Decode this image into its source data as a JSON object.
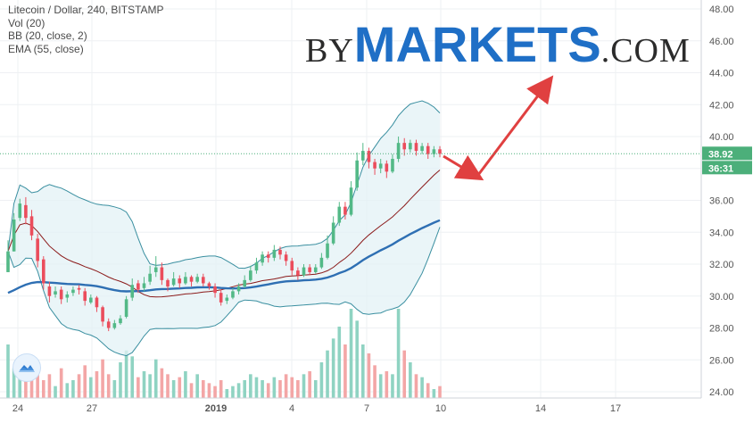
{
  "legend": {
    "title": "Litecoin / Dollar, 240, BITSTAMP",
    "vol": "Vol (20)",
    "bb": "BB (20, close, 2)",
    "ema": "EMA (55, close)"
  },
  "brand": {
    "by": "BY",
    "markets": "MARKETS",
    "com": ".COM"
  },
  "price_axis": {
    "ticks": [
      "48.00",
      "46.00",
      "44.00",
      "42.00",
      "40.00",
      "38.00",
      "36.00",
      "34.00",
      "32.00",
      "30.00",
      "28.00",
      "26.00",
      "24.00"
    ]
  },
  "time_axis": {
    "ticks": [
      "24",
      "27",
      "2019",
      "4",
      "7",
      "10",
      "14",
      "17"
    ]
  },
  "last_price": {
    "value": "38.92",
    "countdown": "36:31"
  },
  "colors": {
    "up": "#53b987",
    "down": "#eb4d5c",
    "vol_up": "#8fd3c2",
    "vol_down": "#f3a6a6",
    "bb_band": "#3a8fa0",
    "bb_basis": "#8b1a1a",
    "ema": "#2e6fb3",
    "arrow": "#e04040",
    "last_price": "#4caf7a",
    "brand": "#1f6fc6"
  },
  "icons": {
    "tv_logo": "tradingview-cloud-icon"
  },
  "chart_data": {
    "type": "candlestick",
    "title": "Litecoin / Dollar, 240, BITSTAMP",
    "ylim": [
      24,
      48
    ],
    "y_ticks": [
      48,
      46,
      44,
      42,
      40,
      38,
      36,
      34,
      32,
      30,
      28,
      26,
      24
    ],
    "x_tick_labels": [
      "24",
      "27",
      "2019",
      "4",
      "7",
      "10",
      "14",
      "17"
    ],
    "candles": [
      [
        31.5,
        32.8,
        31.5,
        33.5
      ],
      [
        32.8,
        34.8,
        32.8,
        35.2
      ],
      [
        34.9,
        35.8,
        34.7,
        36.1
      ],
      [
        35.7,
        34.9,
        34.5,
        36.2
      ],
      [
        35.0,
        33.8,
        33.5,
        35.4
      ],
      [
        33.6,
        32.2,
        31.8,
        33.9
      ],
      [
        32.3,
        30.8,
        30.4,
        32.5
      ],
      [
        30.6,
        30.0,
        29.6,
        30.9
      ],
      [
        30.1,
        30.3,
        29.9,
        30.6
      ],
      [
        30.4,
        29.8,
        29.5,
        30.6
      ],
      [
        29.9,
        30.1,
        29.6,
        30.3
      ],
      [
        30.2,
        30.4,
        30.0,
        30.6
      ],
      [
        30.5,
        30.4,
        30.1,
        30.7
      ],
      [
        30.3,
        29.7,
        29.4,
        30.5
      ],
      [
        29.6,
        29.9,
        29.5,
        30.1
      ],
      [
        29.9,
        29.3,
        29.0,
        30.0
      ],
      [
        29.3,
        28.4,
        28.1,
        29.4
      ],
      [
        28.4,
        28.0,
        27.8,
        28.6
      ],
      [
        28.0,
        28.3,
        27.9,
        28.5
      ],
      [
        28.3,
        28.6,
        28.2,
        28.8
      ],
      [
        28.7,
        29.8,
        28.6,
        30.0
      ],
      [
        29.9,
        30.7,
        29.7,
        31.1
      ],
      [
        30.8,
        30.4,
        30.2,
        31.0
      ],
      [
        30.5,
        30.8,
        30.3,
        31.2
      ],
      [
        30.9,
        31.4,
        30.7,
        31.9
      ],
      [
        31.5,
        31.8,
        31.2,
        32.5
      ],
      [
        31.8,
        31.0,
        30.7,
        32.1
      ],
      [
        31.0,
        30.6,
        30.3,
        31.1
      ],
      [
        30.7,
        31.1,
        30.6,
        31.5
      ],
      [
        31.1,
        30.8,
        30.5,
        31.3
      ],
      [
        30.8,
        31.2,
        30.7,
        31.5
      ],
      [
        31.2,
        30.9,
        30.6,
        31.3
      ],
      [
        30.9,
        31.2,
        30.8,
        31.4
      ],
      [
        31.2,
        30.8,
        30.6,
        31.4
      ],
      [
        30.8,
        30.6,
        30.4,
        30.9
      ],
      [
        30.6,
        30.2,
        29.9,
        30.8
      ],
      [
        30.2,
        29.6,
        29.4,
        30.4
      ],
      [
        29.7,
        29.9,
        29.5,
        30.1
      ],
      [
        29.9,
        30.3,
        29.8,
        30.5
      ],
      [
        30.3,
        30.6,
        30.1,
        30.8
      ],
      [
        30.6,
        31.0,
        30.5,
        31.3
      ],
      [
        31.0,
        31.6,
        30.9,
        31.9
      ],
      [
        31.6,
        32.1,
        31.4,
        32.4
      ],
      [
        32.1,
        32.6,
        31.9,
        32.8
      ],
      [
        32.6,
        32.4,
        32.1,
        32.8
      ],
      [
        32.4,
        32.9,
        32.2,
        33.2
      ],
      [
        32.9,
        32.6,
        32.3,
        33.1
      ],
      [
        32.6,
        32.2,
        31.9,
        32.8
      ],
      [
        32.2,
        31.6,
        31.3,
        32.4
      ],
      [
        31.6,
        31.3,
        31.0,
        31.8
      ],
      [
        31.3,
        31.8,
        31.2,
        32.0
      ],
      [
        31.8,
        31.5,
        31.3,
        32.0
      ],
      [
        31.5,
        31.8,
        31.4,
        32.0
      ],
      [
        31.8,
        32.4,
        31.7,
        32.7
      ],
      [
        32.4,
        33.3,
        32.3,
        33.8
      ],
      [
        33.3,
        34.6,
        33.2,
        35.0
      ],
      [
        34.6,
        35.6,
        34.4,
        35.9
      ],
      [
        35.6,
        35.1,
        34.8,
        35.9
      ],
      [
        35.1,
        36.8,
        35.0,
        37.2
      ],
      [
        36.8,
        38.5,
        36.6,
        39.0
      ],
      [
        38.5,
        39.1,
        38.2,
        39.6
      ],
      [
        39.1,
        38.4,
        38.0,
        39.3
      ],
      [
        38.4,
        38.0,
        37.6,
        38.6
      ],
      [
        38.0,
        38.3,
        37.7,
        38.6
      ],
      [
        38.3,
        37.8,
        37.4,
        38.5
      ],
      [
        37.8,
        38.6,
        37.7,
        38.9
      ],
      [
        38.6,
        39.6,
        38.4,
        40.0
      ],
      [
        39.6,
        39.2,
        38.8,
        39.9
      ],
      [
        39.2,
        39.6,
        39.0,
        39.8
      ],
      [
        39.6,
        39.1,
        38.8,
        39.8
      ],
      [
        39.1,
        39.4,
        38.9,
        39.6
      ],
      [
        39.4,
        38.9,
        38.6,
        39.6
      ],
      [
        38.9,
        39.2,
        38.7,
        39.4
      ],
      [
        39.2,
        38.92,
        38.7,
        39.4
      ]
    ],
    "volume": [
      18,
      10,
      12,
      6,
      11,
      9,
      6,
      8,
      4,
      10,
      5,
      6,
      8,
      11,
      7,
      9,
      13,
      8,
      6,
      12,
      16,
      14,
      7,
      9,
      8,
      13,
      10,
      8,
      6,
      7,
      9,
      5,
      8,
      6,
      5,
      4,
      6,
      3,
      4,
      5,
      6,
      8,
      7,
      6,
      5,
      7,
      6,
      8,
      7,
      6,
      8,
      9,
      6,
      12,
      16,
      20,
      24,
      18,
      30,
      26,
      18,
      15,
      11,
      8,
      9,
      8,
      30,
      16,
      12,
      8,
      7,
      5,
      3,
      4
    ]
  }
}
